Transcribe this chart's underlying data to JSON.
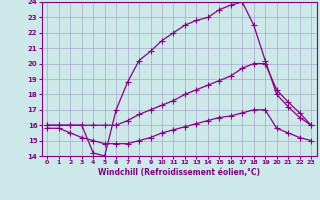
{
  "xlabel": "Windchill (Refroidissement éolien,°C)",
  "bg_color": "#cce8e8",
  "grid_color": "#aaaacc",
  "line_color": "#880088",
  "xlim": [
    -0.5,
    23.5
  ],
  "ylim": [
    14,
    24
  ],
  "yticks": [
    14,
    15,
    16,
    17,
    18,
    19,
    20,
    21,
    22,
    23,
    24
  ],
  "xticks": [
    0,
    1,
    2,
    3,
    4,
    5,
    6,
    7,
    8,
    9,
    10,
    11,
    12,
    13,
    14,
    15,
    16,
    17,
    18,
    19,
    20,
    21,
    22,
    23
  ],
  "line1_x": [
    0,
    1,
    2,
    3,
    4,
    5,
    6,
    7,
    8,
    9,
    10,
    11,
    12,
    13,
    14,
    15,
    16,
    17,
    18,
    19,
    20,
    21,
    22,
    23
  ],
  "line1_y": [
    16,
    16,
    16,
    16,
    14.2,
    14.0,
    17.0,
    18.8,
    20.2,
    20.8,
    21.5,
    22.0,
    22.5,
    22.8,
    23.0,
    23.5,
    23.8,
    24.0,
    22.5,
    20.2,
    18.0,
    17.2,
    16.5,
    16.0
  ],
  "line2_x": [
    0,
    1,
    2,
    3,
    4,
    5,
    6,
    7,
    8,
    9,
    10,
    11,
    12,
    13,
    14,
    15,
    16,
    17,
    18,
    19,
    20,
    21,
    22,
    23
  ],
  "line2_y": [
    16,
    16,
    16,
    16,
    16,
    16,
    16,
    16.3,
    16.7,
    17.0,
    17.3,
    17.6,
    18.0,
    18.3,
    18.6,
    18.9,
    19.2,
    19.7,
    20.0,
    20.0,
    18.3,
    17.5,
    16.8,
    16.0
  ],
  "line3_x": [
    0,
    1,
    2,
    3,
    4,
    5,
    6,
    7,
    8,
    9,
    10,
    11,
    12,
    13,
    14,
    15,
    16,
    17,
    18,
    19,
    20,
    21,
    22,
    23
  ],
  "line3_y": [
    15.8,
    15.8,
    15.5,
    15.2,
    15.0,
    14.8,
    14.8,
    14.8,
    15.0,
    15.2,
    15.5,
    15.7,
    15.9,
    16.1,
    16.3,
    16.5,
    16.6,
    16.8,
    17.0,
    17.0,
    15.8,
    15.5,
    15.2,
    15.0
  ]
}
